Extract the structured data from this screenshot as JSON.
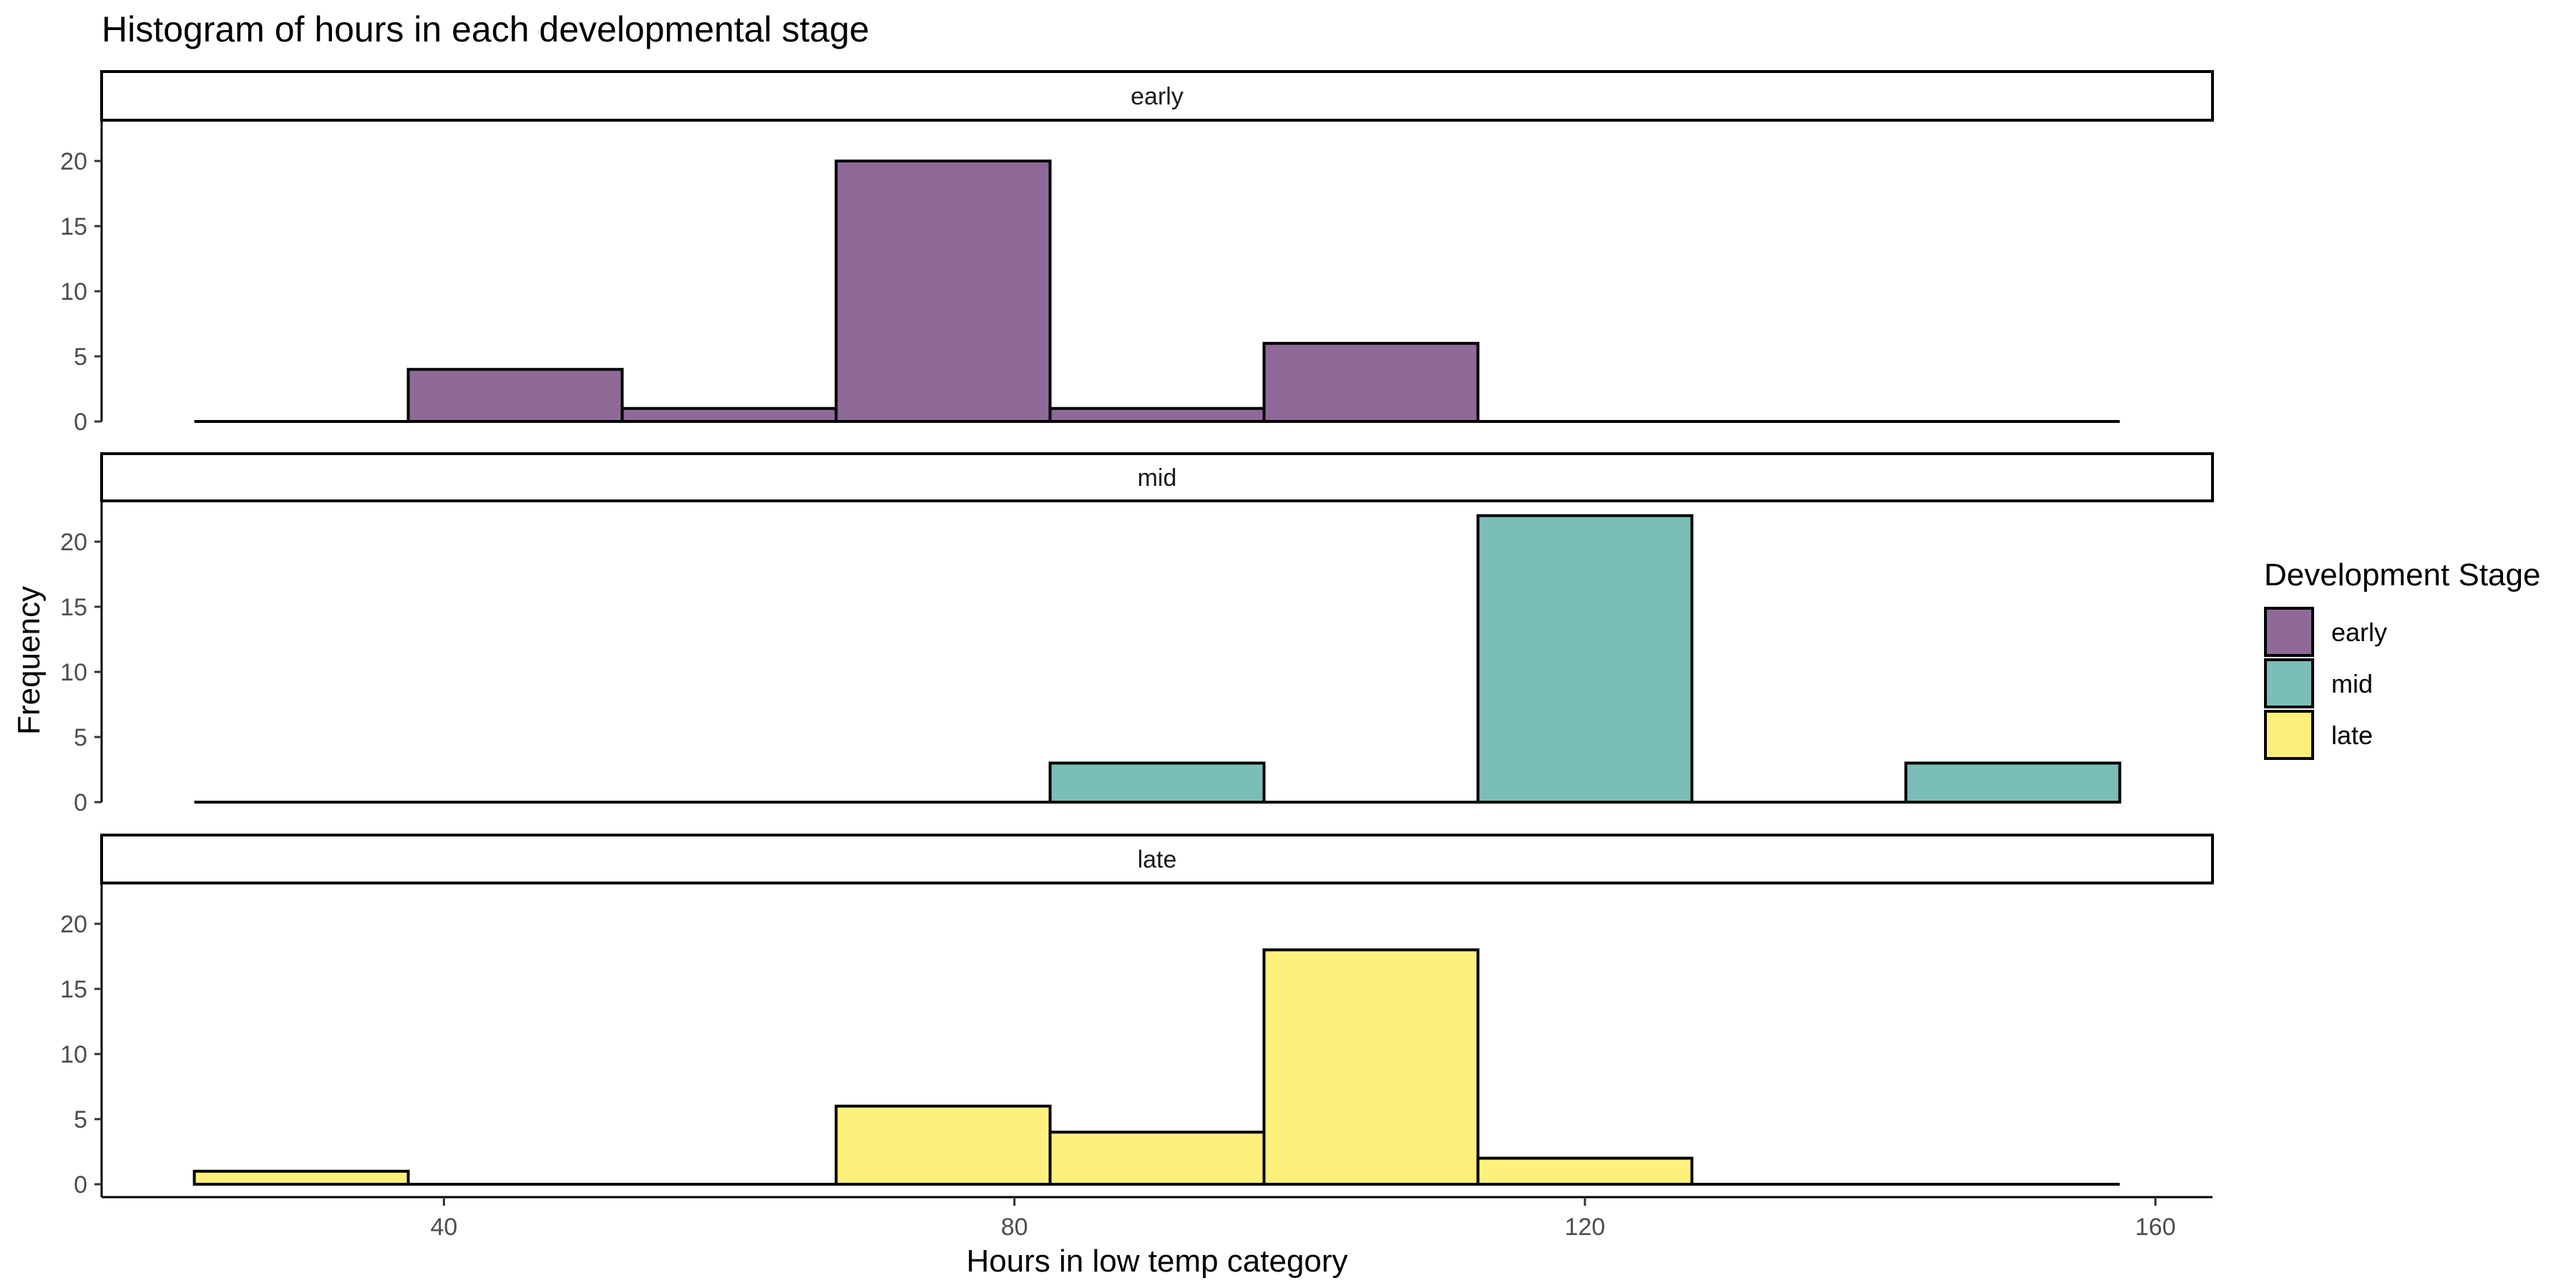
{
  "chart_data": {
    "type": "bar",
    "title": "Histogram of hours in each developmental stage",
    "xlabel": "Hours in low temp category",
    "ylabel": "Frequency",
    "xlim": [
      16,
      164
    ],
    "ylim": [
      0,
      23
    ],
    "x_ticks": [
      40,
      80,
      120,
      160
    ],
    "y_ticks": [
      0,
      5,
      10,
      15,
      20
    ],
    "bin_edges": [
      22.5,
      37.5,
      52.5,
      67.5,
      82.5,
      97.5,
      112.5,
      127.5,
      142.5,
      157.5
    ],
    "bin_centers": [
      30,
      45,
      60,
      75,
      90,
      105,
      120,
      135,
      150
    ],
    "grid": false,
    "facet": "rows",
    "series": [
      {
        "name": "early",
        "color": "#8f6a98",
        "values": [
          0,
          4,
          1,
          20,
          1,
          6,
          0,
          0,
          0
        ]
      },
      {
        "name": "mid",
        "color": "#7bbdb8",
        "values": [
          0,
          0,
          0,
          0,
          3,
          0,
          22,
          0,
          3
        ]
      },
      {
        "name": "late",
        "color": "#fef17b",
        "values": [
          1,
          0,
          0,
          6,
          4,
          18,
          2,
          0,
          0
        ]
      }
    ],
    "legend": {
      "title": "Development Stage",
      "position": "right",
      "items": [
        "early",
        "mid",
        "late"
      ]
    }
  }
}
